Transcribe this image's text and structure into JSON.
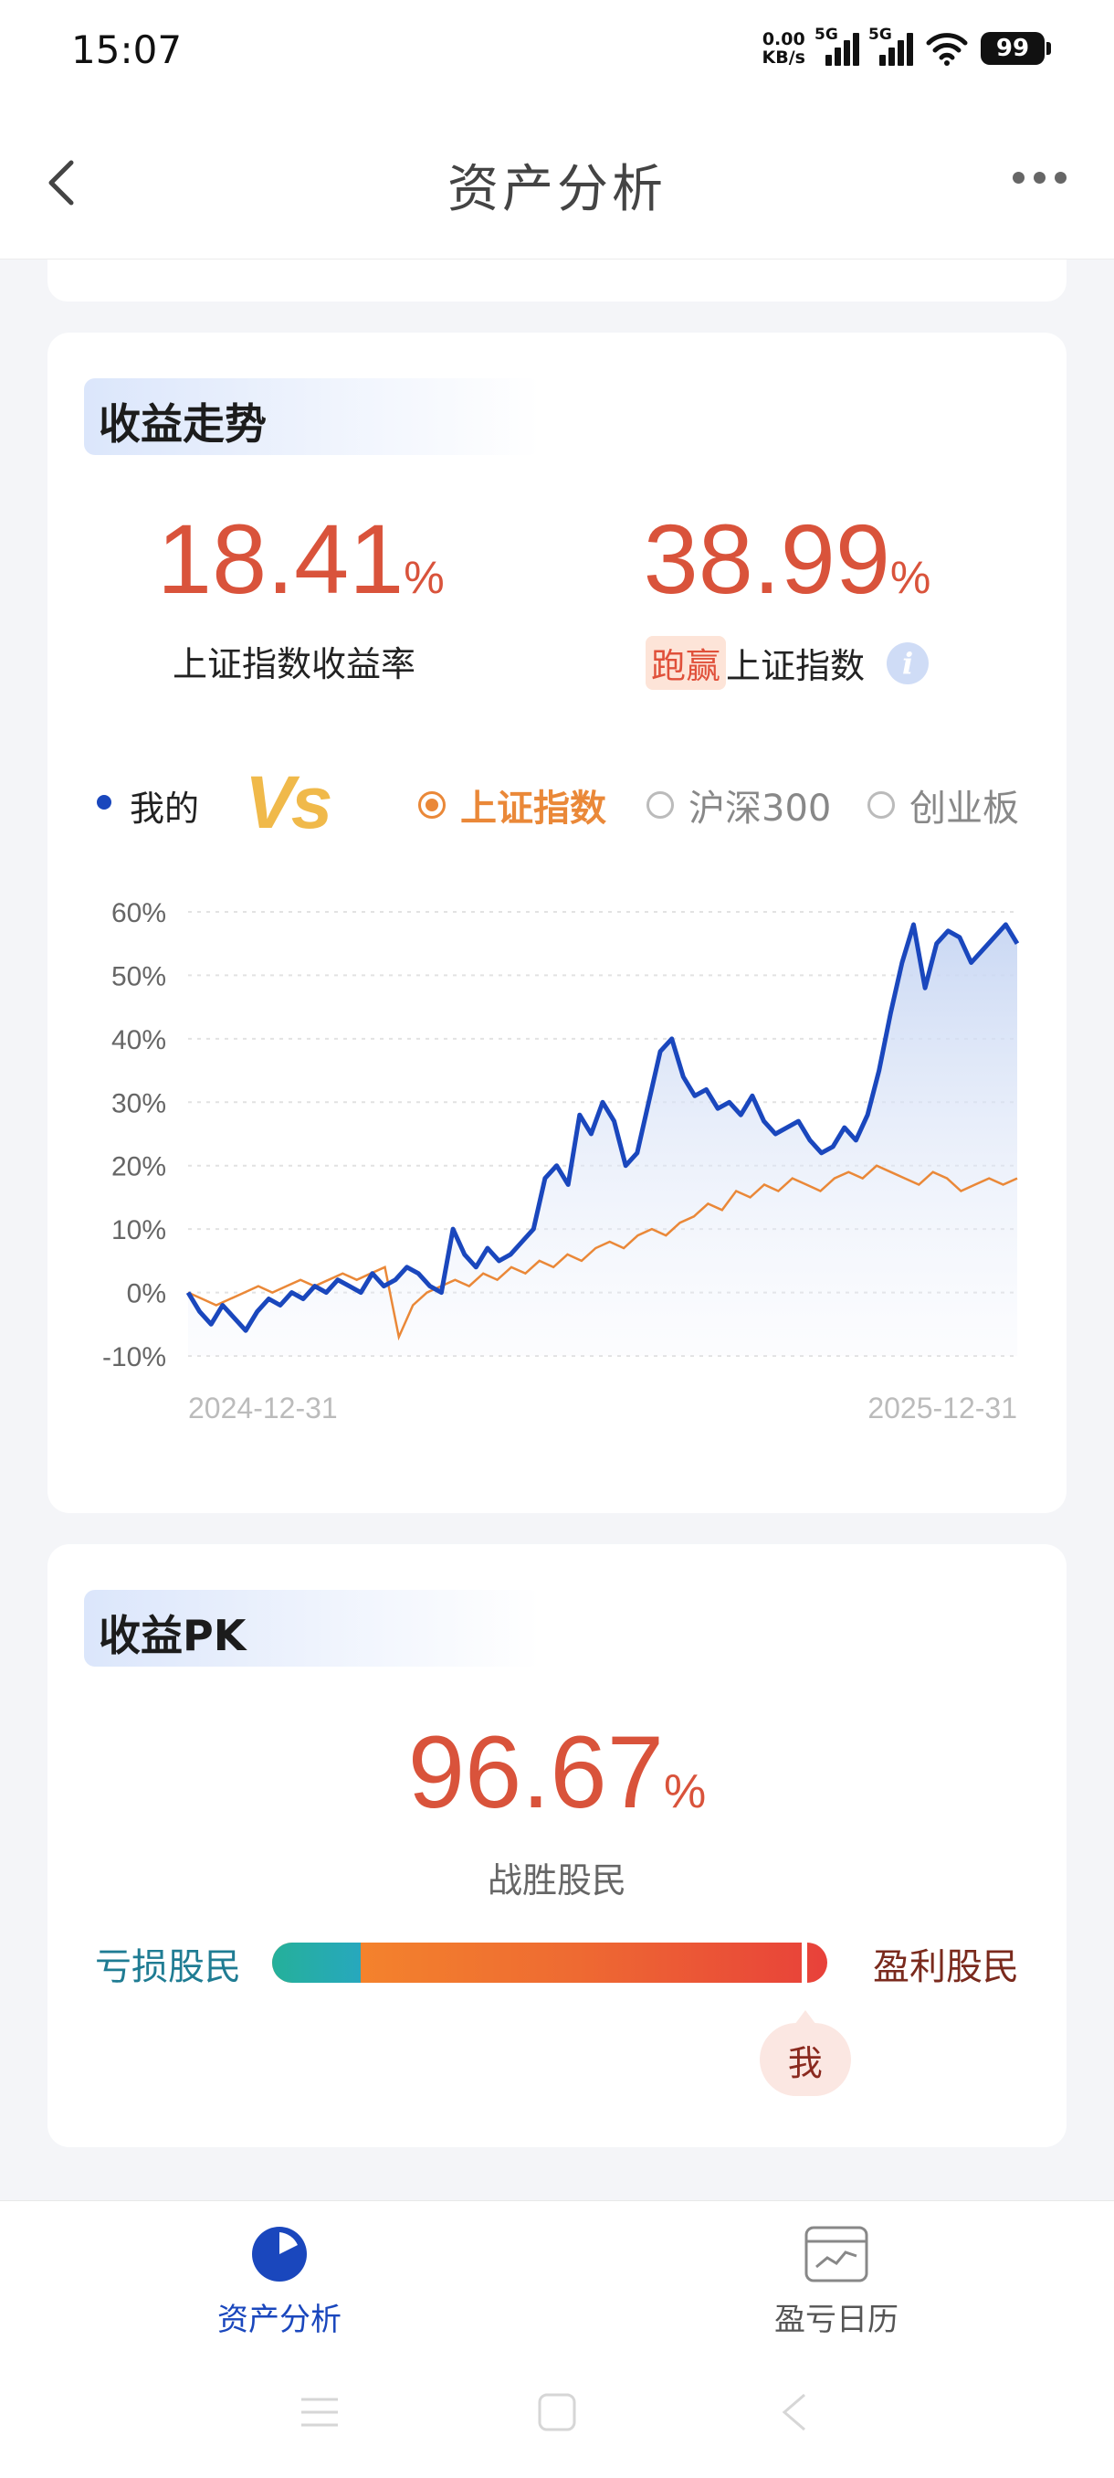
{
  "status_bar": {
    "time": "15:07",
    "net_speed_value": "0.00",
    "net_speed_unit": "KB/s",
    "signal_1_label": "5G",
    "signal_2_label": "5G",
    "battery": "99",
    "icons": [
      "signal-icon",
      "wifi-icon",
      "battery-icon"
    ]
  },
  "header": {
    "title": "资产分析",
    "back_icon": "chevron-left-icon",
    "more_icon": "more-dots-icon"
  },
  "trend_card": {
    "title": "收益走势",
    "index_return_value": "18.41",
    "index_return_unit": "%",
    "index_return_label": "上证指数收益率",
    "beat_value": "38.99",
    "beat_unit": "%",
    "beat_tag": "跑赢",
    "beat_label": "上证指数",
    "info_icon": "i",
    "mine_label": "我的",
    "vs_label": "Vs",
    "options": [
      {
        "label": "上证指数",
        "selected": true
      },
      {
        "label": "沪深300",
        "selected": false
      },
      {
        "label": "创业板",
        "selected": false
      }
    ]
  },
  "chart_data": {
    "type": "line",
    "x_start": "2024-12-31",
    "x_end": "2025-12-31",
    "ylim": [
      -10,
      60
    ],
    "yticks": [
      "60%",
      "50%",
      "40%",
      "30%",
      "20%",
      "10%",
      "0%",
      "-10%"
    ],
    "grid": true,
    "colors": {
      "mine": "#1a47bd",
      "index": "#ea8838"
    },
    "series": [
      {
        "name": "我的",
        "values": [
          0,
          -3,
          -5,
          -2,
          -4,
          -6,
          -3,
          -1,
          -2,
          0,
          -1,
          1,
          0,
          2,
          1,
          0,
          3,
          1,
          2,
          4,
          3,
          1,
          0,
          10,
          6,
          4,
          7,
          5,
          6,
          8,
          10,
          18,
          20,
          17,
          28,
          25,
          30,
          27,
          20,
          22,
          30,
          38,
          40,
          34,
          31,
          32,
          29,
          30,
          28,
          31,
          27,
          25,
          26,
          27,
          24,
          22,
          23,
          26,
          24,
          28,
          35,
          44,
          52,
          58,
          48,
          55,
          57,
          56,
          52,
          54,
          56,
          58,
          55
        ]
      },
      {
        "name": "上证指数",
        "values": [
          0,
          -1,
          -2,
          -1,
          0,
          1,
          0,
          1,
          2,
          1,
          2,
          3,
          2,
          3,
          4,
          -7,
          -2,
          0,
          1,
          2,
          1,
          3,
          2,
          4,
          3,
          5,
          4,
          6,
          5,
          7,
          8,
          7,
          9,
          10,
          9,
          11,
          12,
          14,
          13,
          16,
          15,
          17,
          16,
          18,
          17,
          16,
          18,
          19,
          18,
          20,
          19,
          18,
          17,
          19,
          18,
          16,
          17,
          18,
          17,
          18
        ]
      }
    ]
  },
  "pk_card": {
    "title": "收益PK",
    "value": "96.67",
    "unit": "%",
    "label": "战胜股民",
    "loss_label": "亏损股民",
    "profit_label": "盈利股民",
    "loss_fraction": 0.16,
    "my_position": 0.9667,
    "me_label": "我"
  },
  "tabbar": {
    "tabs": [
      {
        "label": "资产分析",
        "icon": "pie-chart-icon",
        "active": true
      },
      {
        "label": "盈亏日历",
        "icon": "calendar-chart-icon",
        "active": false
      }
    ]
  },
  "nav_bar": {
    "icons": [
      "menu-icon",
      "home-icon",
      "back-icon"
    ]
  }
}
